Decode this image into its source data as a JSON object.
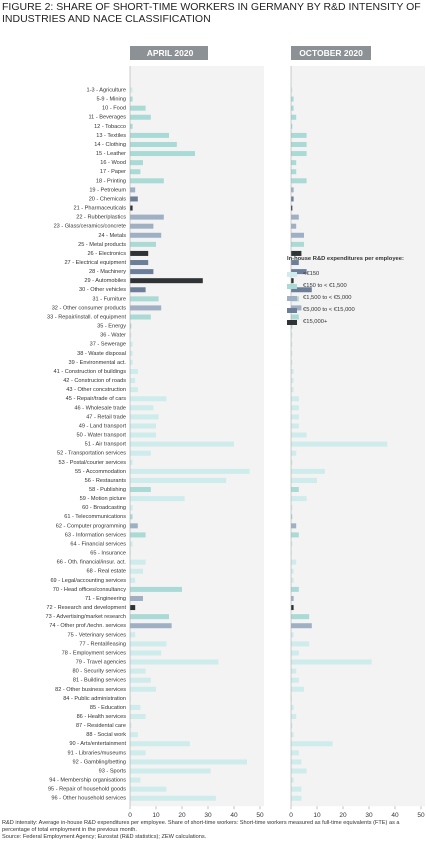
{
  "chart_data": {
    "type": "bar",
    "orientation": "horizontal",
    "title": "FIGURE 2: SHARE OF SHORT-TIME WORKERS IN GERMANY BY R&D INTENSITY OF INDUSTRIES AND NACE CLASSIFICATION",
    "categories": [
      "1-3 - Agriculture",
      "5-9 - Mining",
      "10 - Food",
      "11 - Beverages",
      "12 - Tobacco",
      "13 - Textiles",
      "14 - Clothing",
      "15 - Leather",
      "16 - Wood",
      "17 - Paper",
      "18 - Printing",
      "19 - Petroleum",
      "20 - Chemicals",
      "21 - Pharmaceuticals",
      "22 - Rubber/plastics",
      "23 - Glass/ceramics/concrete",
      "24 - Metals",
      "25 - Metal products",
      "26 - Electronics",
      "27 - Electrical equipment",
      "28 - Machinery",
      "29 - Automobiles",
      "30 - Other vehicles",
      "31 - Furniture",
      "32 - Other consumer products",
      "33 - Repair/install. of equipment",
      "35 - Energy",
      "36 - Water",
      "37 - Sewerage",
      "38 - Waste disposal",
      "39 - Environmental act.",
      "41 - Construction of buildings",
      "42 - Construcion of roads",
      "43 - Other concstruction",
      "45 - Repair/trade of cars",
      "46 - Wholesale trade",
      "47 - Retail trade",
      "49 - Land transport",
      "50 - Water transport",
      "51 - Air transport",
      "52 - Transportation services",
      "53 - Postal/courier services",
      "55 - Accommodation",
      "56 - Restaurants",
      "58 - Publishing",
      "59 - Motion picture",
      "60 - Broadcasting",
      "61 - Telecommunications",
      "62 - Computer programming",
      "63 - Information services",
      "64 - Financial services",
      "65 - Insurance",
      "66 - Oth. financial/insur. act.",
      "68 - Real estate",
      "69 - Legal/accounting services",
      "70 - Head offices/consultancy",
      "71 - Engineering",
      "72 - Research and development",
      "73 - Advertising/market research",
      "74 - Other prof./techn. services",
      "75 - Veterinary services",
      "77 - Rental/leasing",
      "78 - Employment services",
      "79 - Travel agencies",
      "80 - Security services",
      "81 - Building services",
      "82 - Other business services",
      "84 - Public administration",
      "85 - Education",
      "86 - Health services",
      "87 - Residental care",
      "88 - Social work",
      "90 - Arts/entertainment",
      "91 - Libraries/museums",
      "92 - Gambling/betting",
      "93 - Sports",
      "94 - Membership organisations",
      "95 - Repair of household goods",
      "96 - Other household services"
    ],
    "bar_colors": [
      "#cdeceb",
      "#a9dad6",
      "#a9dad6",
      "#a9dad6",
      "#a9dad6",
      "#a9dad6",
      "#a9dad6",
      "#a9dad6",
      "#a9dad6",
      "#a9dad6",
      "#a9dad6",
      "#9fb0c4",
      "#6d7f98",
      "#2f3336",
      "#9fb0c4",
      "#9fb0c4",
      "#9fb0c4",
      "#a9dad6",
      "#2f3336",
      "#6d7f98",
      "#6d7f98",
      "#2f3336",
      "#6d7f98",
      "#a9dad6",
      "#9fb0c4",
      "#a9dad6",
      "#a9dad6",
      "#cdeceb",
      "#cdeceb",
      "#cdeceb",
      "#cdeceb",
      "#cdeceb",
      "#cdeceb",
      "#cdeceb",
      "#cdeceb",
      "#cdeceb",
      "#cdeceb",
      "#cdeceb",
      "#cdeceb",
      "#cdeceb",
      "#cdeceb",
      "#cdeceb",
      "#cdeceb",
      "#cdeceb",
      "#a9dad6",
      "#cdeceb",
      "#cdeceb",
      "#a9dad6",
      "#9fb0c4",
      "#a9dad6",
      "#cdeceb",
      "#cdeceb",
      "#cdeceb",
      "#cdeceb",
      "#cdeceb",
      "#a9dad6",
      "#9fb0c4",
      "#2f3336",
      "#a9dad6",
      "#9fb0c4",
      "#cdeceb",
      "#cdeceb",
      "#cdeceb",
      "#cdeceb",
      "#cdeceb",
      "#cdeceb",
      "#cdeceb",
      "#cdeceb",
      "#cdeceb",
      "#cdeceb",
      "#cdeceb",
      "#cdeceb",
      "#cdeceb",
      "#cdeceb",
      "#cdeceb",
      "#cdeceb",
      "#cdeceb",
      "#cdeceb",
      "#cdeceb"
    ],
    "panels": [
      {
        "title": "APRIL 2020",
        "xlim": [
          0,
          50
        ],
        "xticks": [
          0,
          10,
          20,
          30,
          40,
          50
        ],
        "values": [
          1,
          1,
          6,
          8,
          1,
          15,
          18,
          25,
          5,
          4,
          13,
          2,
          3,
          1,
          13,
          9,
          12,
          10,
          7,
          7,
          9,
          28,
          6,
          11,
          12,
          8,
          0.5,
          0.5,
          1,
          1,
          1,
          3,
          2,
          3,
          14,
          9,
          11,
          10,
          10,
          40,
          8,
          1,
          46,
          37,
          8,
          21,
          1,
          1,
          3,
          6,
          1,
          0.3,
          6,
          5,
          2,
          20,
          5,
          2,
          15,
          16,
          2,
          14,
          12,
          34,
          6,
          8,
          10,
          0.3,
          4,
          6,
          0.5,
          3,
          23,
          6,
          45,
          31,
          4,
          14,
          33
        ]
      },
      {
        "title": "OCTOBER 2020",
        "xlim": [
          0,
          50
        ],
        "xticks": [
          0,
          10,
          20,
          30,
          40,
          50
        ],
        "values": [
          0.5,
          1,
          1,
          2,
          0.5,
          6,
          6,
          6,
          2,
          2,
          6,
          1,
          1,
          0.5,
          3,
          2,
          5,
          5,
          4,
          3,
          6,
          1,
          8,
          3,
          4,
          3,
          0.5,
          0.5,
          0.5,
          0.5,
          0.5,
          1,
          1,
          1,
          3,
          3,
          3,
          3,
          6,
          37,
          2,
          0.5,
          13,
          10,
          3,
          6,
          0.5,
          0.5,
          2,
          3,
          0.5,
          0.3,
          2,
          1,
          1,
          3,
          1,
          1,
          7,
          8,
          1,
          7,
          3,
          31,
          2,
          3,
          5,
          0.3,
          1,
          2,
          0.5,
          1,
          16,
          3,
          4,
          6,
          1,
          4,
          4
        ]
      }
    ],
    "legend": {
      "title": "In-house R&D expenditures per employee:",
      "items": [
        {
          "label": "<€150",
          "color": "#cdeceb"
        },
        {
          "label": "€150 to < €1,500",
          "color": "#a9dad6"
        },
        {
          "label": "€1,500 to < €5,000",
          "color": "#9fb0c4"
        },
        {
          "label": "€5,000 to < €15,000",
          "color": "#6d7f98"
        },
        {
          "label": "€15,000+",
          "color": "#2f3336"
        }
      ]
    },
    "notes": [
      "R&D intensity: Average in-house R&D expenditures per employee. Share of short-time workers: Short-time workers measured as full-time equivalents (FTE) as a percentage of total employment in the previous month.",
      "Source: Federal Employment Agency; Eurostat (R&D statistics); ZEW calculations."
    ]
  }
}
